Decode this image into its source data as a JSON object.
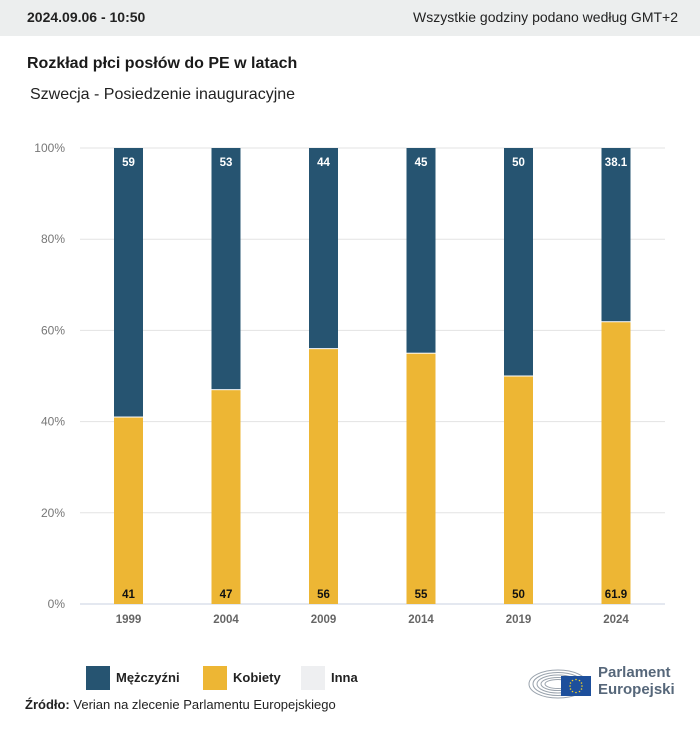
{
  "header": {
    "datetime": "2024.09.06 - 10:50",
    "timezone_note": "Wszystkie godziny podano według GMT+2"
  },
  "title": "Rozkład płci posłów do PE w latach",
  "subtitle": "Szwecja - Posiedzenie inauguracyjne",
  "colors": {
    "men": "#265471",
    "women": "#edb634",
    "other": "#eeeff1",
    "grid": "#e3e3e3",
    "axis": "#c9d2e0"
  },
  "chart_data": {
    "type": "bar",
    "stacked": true,
    "categories": [
      "1999",
      "2004",
      "2009",
      "2014",
      "2019",
      "2024"
    ],
    "series": [
      {
        "name": "Kobiety",
        "key": "women",
        "values": [
          41,
          47,
          56,
          55,
          50,
          61.9
        ]
      },
      {
        "name": "Mężczyźni",
        "key": "men",
        "values": [
          59,
          53,
          44,
          45,
          50,
          38.1
        ]
      },
      {
        "name": "Inna",
        "key": "other",
        "values": [
          0,
          0,
          0,
          0,
          0,
          0
        ]
      }
    ],
    "yticks": [
      "0%",
      "20%",
      "40%",
      "60%",
      "80%",
      "100%"
    ],
    "ylim": [
      0,
      100
    ],
    "xlabel": "",
    "ylabel": "",
    "grid": true,
    "legend_position": "bottom-left"
  },
  "legend": [
    {
      "label": "Mężczyźni",
      "key": "men"
    },
    {
      "label": "Kobiety",
      "key": "women"
    },
    {
      "label": "Inna",
      "key": "other"
    }
  ],
  "source": {
    "label": "Źródło:",
    "text": "Verian na zlecenie Parlamentu Europejskiego"
  },
  "logo": {
    "line1": "Parlament",
    "line2": "Europejski"
  }
}
